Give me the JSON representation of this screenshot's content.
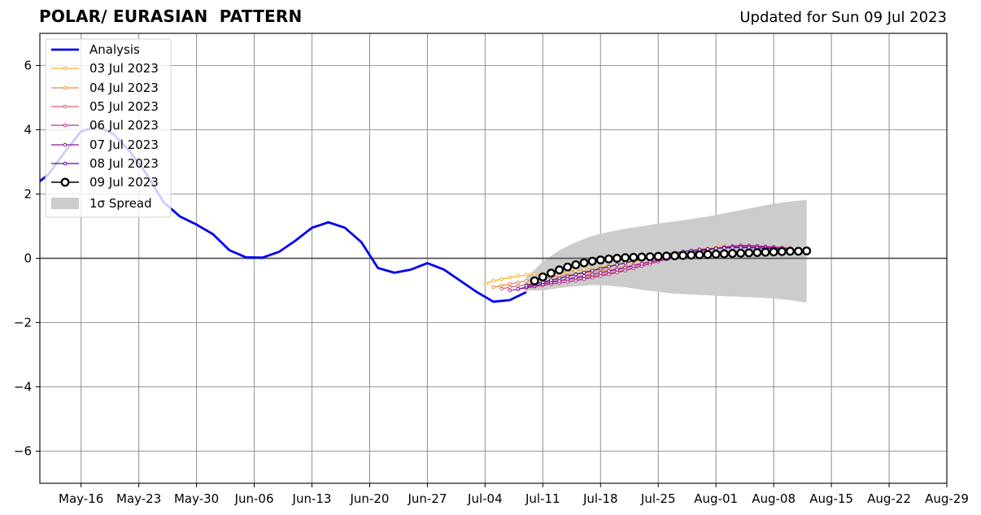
{
  "header": {
    "title": "POLAR/ EURASIAN  PATTERN",
    "updated": "Updated for Sun 09 Jul 2023"
  },
  "colors": {
    "analysis": "#0000ee",
    "forecast_2023-07-03": "#f9b233",
    "forecast_2023-07-04": "#ee8a4e",
    "forecast_2023-07-05": "#dc5f73",
    "forecast_2023-07-06": "#b8348a",
    "forecast_2023-07-07": "#8e169a",
    "forecast_2023-07-08": "#5a0f8a",
    "forecast_2023-07-09": "#000000",
    "spread": "#cccccc",
    "grid": "#999999",
    "zero_line": "#555555"
  },
  "chart_data": {
    "type": "line",
    "title": "POLAR/ EURASIAN  PATTERN",
    "xlabel": "",
    "ylabel": "",
    "xlim": [
      "2023-05-11",
      "2023-08-29"
    ],
    "ylim": [
      -7,
      7
    ],
    "grid": true,
    "legend_position": "top-left",
    "x_tick_labels": [
      "May-16",
      "May-23",
      "May-30",
      "Jun-06",
      "Jun-13",
      "Jun-20",
      "Jun-27",
      "Jul-04",
      "Jul-11",
      "Jul-18",
      "Jul-25",
      "Aug-01",
      "Aug-08",
      "Aug-15",
      "Aug-22",
      "Aug-29"
    ],
    "x_ticks": [
      "2023-05-16",
      "2023-05-23",
      "2023-05-30",
      "2023-06-06",
      "2023-06-13",
      "2023-06-20",
      "2023-06-27",
      "2023-07-04",
      "2023-07-11",
      "2023-07-18",
      "2023-07-25",
      "2023-08-01",
      "2023-08-08",
      "2023-08-15",
      "2023-08-22",
      "2023-08-29"
    ],
    "y_ticks": [
      -6,
      -4,
      -2,
      0,
      2,
      4,
      6
    ],
    "y_tick_labels": [
      "−6",
      "−4",
      "−2",
      "0",
      "2",
      "4",
      "6"
    ],
    "legend": [
      "Analysis",
      "03 Jul 2023",
      "04 Jul 2023",
      "05 Jul 2023",
      "06 Jul 2023",
      "07 Jul 2023",
      "08 Jul 2023",
      "09 Jul 2023",
      "1σ Spread"
    ],
    "analysis": {
      "name": "Analysis",
      "dates": [
        "2023-05-10",
        "2023-05-12",
        "2023-05-14",
        "2023-05-16",
        "2023-05-18",
        "2023-05-20",
        "2023-05-22",
        "2023-05-24",
        "2023-05-26",
        "2023-05-28",
        "2023-05-30",
        "2023-06-01",
        "2023-06-03",
        "2023-06-05",
        "2023-06-07",
        "2023-06-09",
        "2023-06-11",
        "2023-06-13",
        "2023-06-15",
        "2023-06-17",
        "2023-06-19",
        "2023-06-21",
        "2023-06-23",
        "2023-06-25",
        "2023-06-27",
        "2023-06-29",
        "2023-07-01",
        "2023-07-03",
        "2023-07-05",
        "2023-07-07",
        "2023-07-09"
      ],
      "values": [
        2.2,
        2.6,
        3.3,
        3.95,
        4.1,
        3.85,
        3.3,
        2.6,
        1.75,
        1.3,
        1.05,
        0.75,
        0.25,
        0.03,
        0.02,
        0.2,
        0.55,
        0.95,
        1.12,
        0.95,
        0.5,
        -0.3,
        -0.45,
        -0.35,
        -0.15,
        -0.35,
        -0.7,
        -1.05,
        -1.35,
        -1.3,
        -1.05
      ]
    },
    "series": [
      {
        "name": "03 Jul 2023",
        "start": "2023-07-04",
        "values": [
          -0.8,
          -0.7,
          -0.65,
          -0.6,
          -0.55,
          -0.52,
          -0.5,
          -0.48,
          -0.46,
          -0.44,
          -0.42,
          -0.38,
          -0.35,
          -0.32,
          -0.28,
          -0.24,
          -0.2,
          -0.15,
          -0.1,
          -0.05,
          0.0,
          0.05,
          0.1,
          0.15,
          0.2,
          0.24,
          0.28,
          0.31,
          0.34,
          0.37,
          0.38,
          0.38,
          0.37,
          0.36,
          0.35,
          0.33,
          0.32,
          0.3
        ]
      },
      {
        "name": "04 Jul 2023",
        "start": "2023-07-05",
        "values": [
          -0.9,
          -0.85,
          -0.8,
          -0.75,
          -0.7,
          -0.66,
          -0.62,
          -0.58,
          -0.55,
          -0.52,
          -0.49,
          -0.46,
          -0.43,
          -0.39,
          -0.35,
          -0.31,
          -0.26,
          -0.21,
          -0.16,
          -0.1,
          -0.05,
          0.01,
          0.07,
          0.12,
          0.17,
          0.22,
          0.26,
          0.3,
          0.33,
          0.36,
          0.38,
          0.39,
          0.38,
          0.37,
          0.36,
          0.34,
          0.32
        ]
      },
      {
        "name": "05 Jul 2023",
        "start": "2023-07-06",
        "values": [
          -0.95,
          -0.9,
          -0.86,
          -0.82,
          -0.78,
          -0.75,
          -0.72,
          -0.69,
          -0.66,
          -0.63,
          -0.6,
          -0.56,
          -0.52,
          -0.47,
          -0.42,
          -0.36,
          -0.3,
          -0.23,
          -0.16,
          -0.09,
          -0.02,
          0.05,
          0.11,
          0.17,
          0.22,
          0.27,
          0.31,
          0.34,
          0.37,
          0.39,
          0.39,
          0.38,
          0.36,
          0.34,
          0.32,
          0.3
        ]
      },
      {
        "name": "06 Jul 2023",
        "start": "2023-07-07",
        "values": [
          -1.0,
          -0.96,
          -0.92,
          -0.88,
          -0.84,
          -0.8,
          -0.77,
          -0.73,
          -0.69,
          -0.65,
          -0.6,
          -0.55,
          -0.5,
          -0.44,
          -0.38,
          -0.31,
          -0.24,
          -0.17,
          -0.1,
          -0.03,
          0.04,
          0.1,
          0.16,
          0.22,
          0.27,
          0.31,
          0.35,
          0.38,
          0.4,
          0.4,
          0.39,
          0.37,
          0.35,
          0.33,
          0.31
        ]
      },
      {
        "name": "07 Jul 2023",
        "start": "2023-07-08",
        "values": [
          -0.95,
          -0.9,
          -0.85,
          -0.8,
          -0.75,
          -0.7,
          -0.65,
          -0.6,
          -0.55,
          -0.5,
          -0.45,
          -0.4,
          -0.35,
          -0.29,
          -0.23,
          -0.17,
          -0.11,
          -0.05,
          0.01,
          0.07,
          0.13,
          0.18,
          0.23,
          0.27,
          0.31,
          0.34,
          0.36,
          0.37,
          0.37,
          0.36,
          0.35,
          0.33,
          0.31,
          0.3
        ]
      },
      {
        "name": "08 Jul 2023",
        "start": "2023-07-09",
        "values": [
          -0.85,
          -0.8,
          -0.74,
          -0.68,
          -0.62,
          -0.56,
          -0.5,
          -0.44,
          -0.38,
          -0.32,
          -0.26,
          -0.2,
          -0.14,
          -0.08,
          -0.02,
          0.03,
          0.08,
          0.13,
          0.17,
          0.21,
          0.24,
          0.27,
          0.29,
          0.31,
          0.32,
          0.33,
          0.33,
          0.33,
          0.32,
          0.31,
          0.3,
          0.29,
          0.28
        ]
      },
      {
        "name": "09 Jul 2023",
        "start": "2023-07-10",
        "values": [
          -0.7,
          -0.58,
          -0.46,
          -0.36,
          -0.27,
          -0.2,
          -0.14,
          -0.09,
          -0.05,
          -0.02,
          0.0,
          0.02,
          0.03,
          0.04,
          0.05,
          0.06,
          0.07,
          0.08,
          0.09,
          0.1,
          0.11,
          0.12,
          0.13,
          0.14,
          0.15,
          0.16,
          0.17,
          0.18,
          0.19,
          0.2,
          0.21,
          0.22,
          0.22,
          0.23
        ]
      }
    ],
    "spread": {
      "name": "1σ Spread",
      "dates": [
        "2023-07-09",
        "2023-07-11",
        "2023-07-13",
        "2023-07-15",
        "2023-07-17",
        "2023-07-19",
        "2023-07-21",
        "2023-07-23",
        "2023-07-25",
        "2023-07-27",
        "2023-07-29",
        "2023-07-31",
        "2023-08-02",
        "2023-08-04",
        "2023-08-06",
        "2023-08-08",
        "2023-08-10",
        "2023-08-12"
      ],
      "upper": [
        -0.6,
        -0.1,
        0.25,
        0.5,
        0.7,
        0.82,
        0.92,
        1.0,
        1.08,
        1.15,
        1.22,
        1.3,
        1.4,
        1.5,
        1.6,
        1.7,
        1.77,
        1.82
      ],
      "lower": [
        -1.0,
        -1.0,
        -0.92,
        -0.87,
        -0.83,
        -0.85,
        -0.9,
        -0.98,
        -1.04,
        -1.1,
        -1.13,
        -1.15,
        -1.18,
        -1.2,
        -1.22,
        -1.25,
        -1.3,
        -1.38
      ]
    }
  }
}
